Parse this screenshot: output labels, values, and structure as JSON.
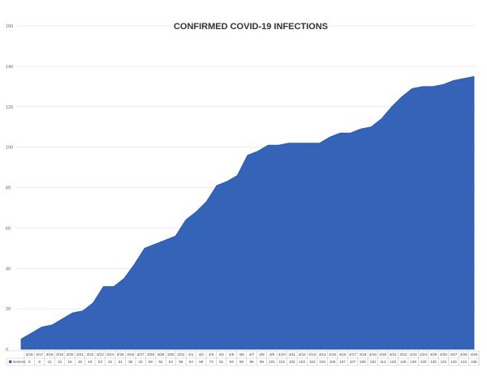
{
  "chart_data": {
    "type": "area",
    "title": "CONFIRMED COVID-19 INFECTIONS",
    "xlabel": "",
    "ylabel": "",
    "ylim": [
      0,
      160
    ],
    "yticks": [
      0,
      20,
      40,
      60,
      80,
      100,
      120,
      140,
      160
    ],
    "grid": true,
    "legend": "data table",
    "categories": [
      "3/16",
      "3/17",
      "3/18",
      "3/19",
      "3/20",
      "3/21",
      "3/22",
      "3/23",
      "3/24",
      "3/25",
      "3/26",
      "3/27",
      "3/28",
      "3/29",
      "3/30",
      "3/31",
      "4/1",
      "4/2",
      "4/3",
      "4/4",
      "4/5",
      "4/6",
      "4/7",
      "4/8",
      "4/9",
      "4/10",
      "4/11",
      "4/12",
      "4/13",
      "4/14",
      "4/15",
      "4/16",
      "4/17",
      "4/18",
      "4/19",
      "4/20",
      "4/21",
      "4/22",
      "4/23",
      "4/24",
      "4/25",
      "4/26",
      "4/27",
      "4/28",
      "4/29"
    ],
    "series": [
      {
        "name": "Series1",
        "color": "#3463b8",
        "values": [
          5,
          8,
          11,
          12,
          15,
          18,
          19,
          23,
          31,
          31,
          35,
          42,
          50,
          52,
          54,
          56,
          64,
          68,
          73,
          81,
          83,
          86,
          96,
          98,
          101,
          101,
          102,
          102,
          102,
          102,
          105,
          107,
          107,
          109,
          110,
          114,
          120,
          125,
          129,
          130,
          130,
          131,
          133,
          134,
          135
        ]
      }
    ]
  }
}
